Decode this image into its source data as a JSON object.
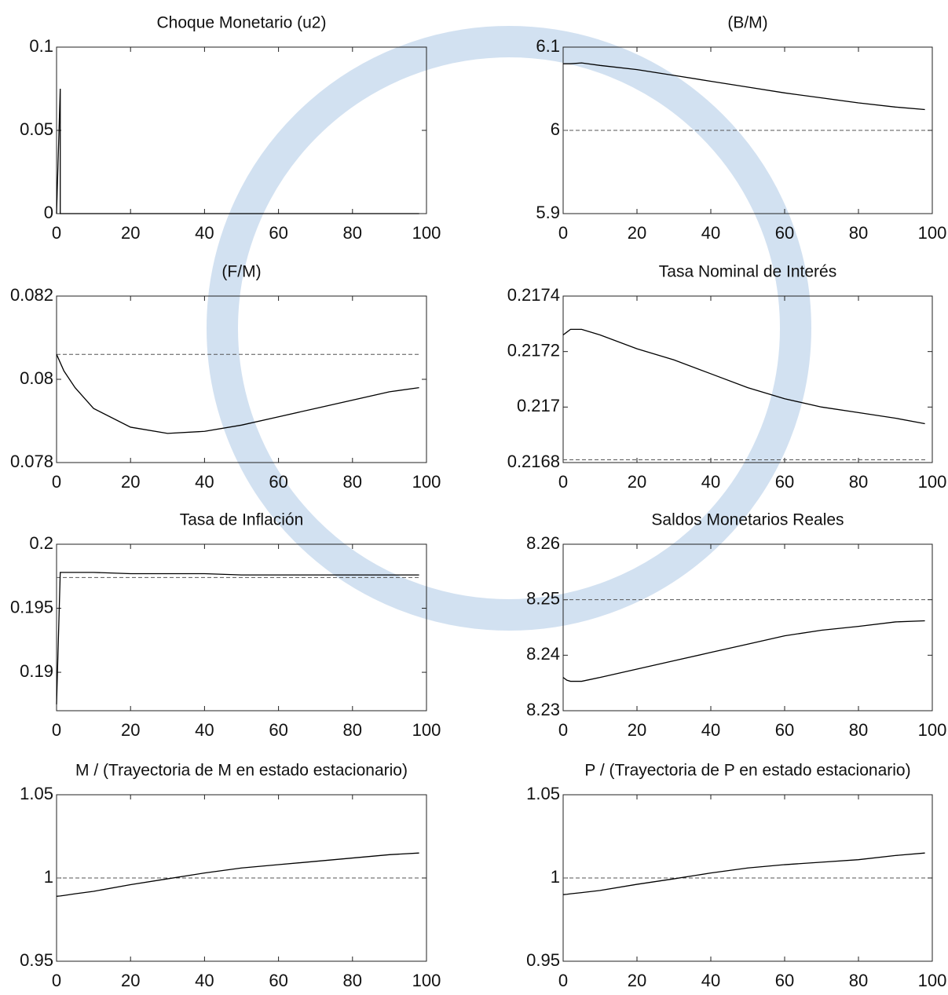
{
  "chart_data": [
    {
      "type": "line",
      "title": "Choque Monetario (u2)",
      "x": [
        0,
        1,
        1,
        2,
        5,
        10,
        20,
        30,
        40,
        50,
        60,
        70,
        80,
        90,
        98
      ],
      "values": [
        0,
        0.075,
        0,
        0,
        0,
        0,
        0,
        0,
        0,
        0,
        0,
        0,
        0,
        0,
        0
      ],
      "color": "#000000",
      "xlim": [
        0,
        100
      ],
      "xticks": [
        0,
        20,
        40,
        60,
        80,
        100
      ],
      "ylim": [
        0,
        0.1
      ],
      "yticks": [
        0,
        0.05,
        0.1
      ]
    },
    {
      "type": "line",
      "title": "(B/M)",
      "x": [
        0,
        1,
        2,
        5,
        10,
        20,
        30,
        40,
        50,
        60,
        70,
        80,
        90,
        98
      ],
      "values": [
        6.08,
        6.08,
        6.08,
        6.081,
        6.078,
        6.073,
        6.066,
        6.059,
        6.052,
        6.045,
        6.039,
        6.033,
        6.028,
        6.025
      ],
      "reference": 6.0,
      "color": "#000000",
      "xlim": [
        0,
        100
      ],
      "xticks": [
        0,
        20,
        40,
        60,
        80,
        100
      ],
      "ylim": [
        5.9,
        6.1
      ],
      "yticks": [
        5.9,
        6,
        6.1
      ]
    },
    {
      "type": "line",
      "title": "(F/M)",
      "x": [
        0,
        1,
        2,
        5,
        10,
        20,
        30,
        40,
        50,
        60,
        70,
        80,
        90,
        98
      ],
      "values": [
        0.0806,
        0.0804,
        0.0802,
        0.0798,
        0.0793,
        0.07885,
        0.0787,
        0.07875,
        0.0789,
        0.0791,
        0.0793,
        0.0795,
        0.0797,
        0.0798
      ],
      "reference": 0.0806,
      "color": "#000000",
      "xlim": [
        0,
        100
      ],
      "xticks": [
        0,
        20,
        40,
        60,
        80,
        100
      ],
      "ylim": [
        0.078,
        0.082
      ],
      "yticks": [
        0.078,
        0.08,
        0.082
      ]
    },
    {
      "type": "line",
      "title": "Tasa Nominal de Interés",
      "x": [
        0,
        1,
        2,
        5,
        10,
        20,
        30,
        40,
        50,
        60,
        70,
        80,
        90,
        98
      ],
      "values": [
        0.21726,
        0.21727,
        0.21728,
        0.21728,
        0.21726,
        0.21721,
        0.21717,
        0.21712,
        0.21707,
        0.21703,
        0.217,
        0.21698,
        0.21696,
        0.21694
      ],
      "reference": 0.21681,
      "color": "#000000",
      "xlim": [
        0,
        100
      ],
      "xticks": [
        0,
        20,
        40,
        60,
        80,
        100
      ],
      "ylim": [
        0.2168,
        0.2174
      ],
      "yticks": [
        0.2168,
        0.217,
        0.2172,
        0.2174
      ]
    },
    {
      "type": "line",
      "title": "Tasa de Inflación",
      "x": [
        0,
        1,
        2,
        5,
        10,
        20,
        30,
        40,
        50,
        60,
        70,
        80,
        90,
        98
      ],
      "values": [
        0.1875,
        0.1978,
        0.1978,
        0.1978,
        0.1978,
        0.1977,
        0.1977,
        0.1977,
        0.1976,
        0.1976,
        0.1976,
        0.1976,
        0.1976,
        0.1976
      ],
      "reference": 0.1974,
      "color": "#000000",
      "xlim": [
        0,
        100
      ],
      "xticks": [
        0,
        20,
        40,
        60,
        80,
        100
      ],
      "ylim": [
        0.187,
        0.2
      ],
      "yticks": [
        0.19,
        0.195,
        0.2
      ]
    },
    {
      "type": "line",
      "title": "Saldos Monetarios Reales",
      "x": [
        0,
        1,
        2,
        5,
        10,
        20,
        30,
        40,
        50,
        60,
        70,
        80,
        90,
        98
      ],
      "values": [
        8.236,
        8.2355,
        8.2353,
        8.2353,
        8.236,
        8.2375,
        8.239,
        8.2405,
        8.242,
        8.2435,
        8.2445,
        8.2452,
        8.246,
        8.2462
      ],
      "reference": 8.25,
      "color": "#000000",
      "xlim": [
        0,
        100
      ],
      "xticks": [
        0,
        20,
        40,
        60,
        80,
        100
      ],
      "ylim": [
        8.23,
        8.26
      ],
      "yticks": [
        8.23,
        8.24,
        8.25,
        8.26
      ]
    },
    {
      "type": "line",
      "title": "M / (Trayectoria de M en estado estacionario)",
      "x": [
        0,
        1,
        2,
        5,
        10,
        20,
        30,
        40,
        50,
        60,
        70,
        80,
        90,
        98
      ],
      "values": [
        0.989,
        0.9892,
        0.9895,
        0.9905,
        0.992,
        0.996,
        0.9995,
        1.003,
        1.006,
        1.008,
        1.01,
        1.012,
        1.014,
        1.015
      ],
      "reference": 1.0,
      "color": "#000000",
      "xlim": [
        0,
        100
      ],
      "xticks": [
        0,
        20,
        40,
        60,
        80,
        100
      ],
      "ylim": [
        0.95,
        1.05
      ],
      "yticks": [
        0.95,
        1,
        1.05
      ]
    },
    {
      "type": "line",
      "title": "P / (Trayectoria de P en estado estacionario)",
      "x": [
        0,
        1,
        2,
        5,
        10,
        20,
        30,
        40,
        50,
        60,
        70,
        80,
        90,
        98
      ],
      "values": [
        0.99,
        0.9902,
        0.9905,
        0.9912,
        0.9925,
        0.9962,
        0.9995,
        1.003,
        1.006,
        1.008,
        1.0095,
        1.011,
        1.0135,
        1.015
      ],
      "reference": 1.0,
      "color": "#000000",
      "xlim": [
        0,
        100
      ],
      "xticks": [
        0,
        20,
        40,
        60,
        80,
        100
      ],
      "ylim": [
        0.95,
        1.05
      ],
      "yticks": [
        0.95,
        1,
        1.05
      ]
    }
  ]
}
